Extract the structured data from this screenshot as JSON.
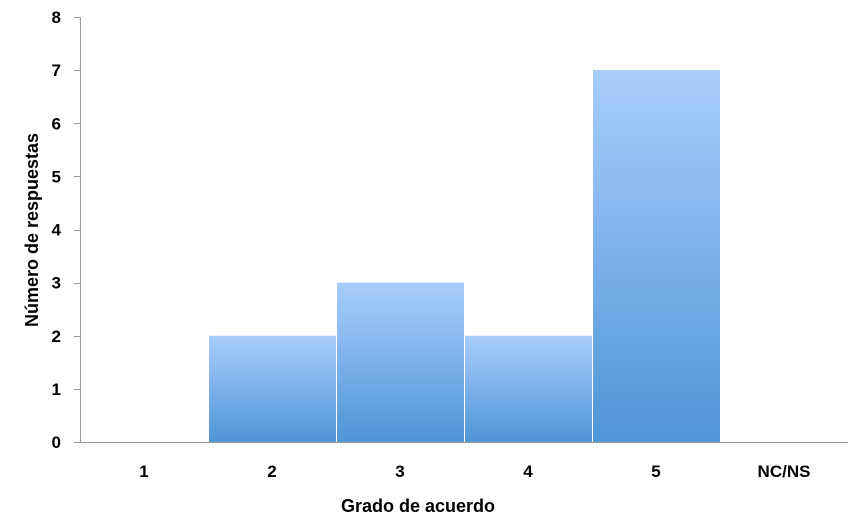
{
  "chart_data": {
    "type": "bar",
    "title": "",
    "xlabel": "Grado de acuerdo",
    "ylabel": "Número de respuestas",
    "categories": [
      "1",
      "2",
      "3",
      "4",
      "5",
      "NC/NS"
    ],
    "values": [
      0,
      2,
      3,
      2,
      7,
      0
    ],
    "ylim": [
      0,
      8
    ],
    "yticks": [
      0,
      1,
      2,
      3,
      4,
      5,
      6,
      7,
      8
    ],
    "grid": false,
    "legend": "none",
    "bar_gap": "none",
    "colors": {
      "bar_top": "#a9cdfb",
      "bar_bottom": "#4f95d8",
      "axis": "#9a9a9a",
      "text": "#000000"
    }
  }
}
